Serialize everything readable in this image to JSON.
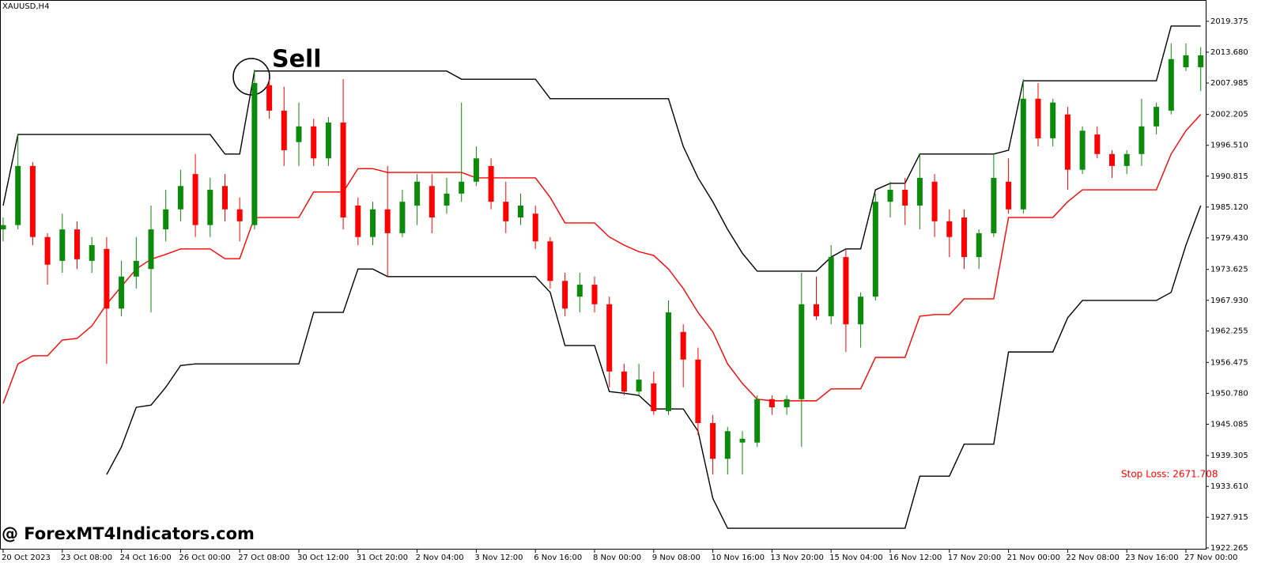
{
  "chart_data": {
    "type": "candlestick",
    "title": "XAUUSD,H4",
    "annotations": [
      "Sell",
      "Stop Loss: 2671.708",
      "@ ForexMT4Indicators.com"
    ],
    "up_color": "#0b8a0b",
    "down_color": "#ff0000",
    "categories": [
      "20 Oct 2023",
      null,
      null,
      null,
      "23 Oct 08:00",
      null,
      null,
      null,
      "24 Oct 16:00",
      null,
      null,
      null,
      "26 Oct 00:00",
      null,
      null,
      null,
      "27 Oct 08:00",
      null,
      null,
      null,
      "30 Oct 12:00",
      null,
      null,
      null,
      "31 Oct 20:00",
      null,
      null,
      null,
      "2 Nov 04:00",
      null,
      null,
      null,
      "3 Nov 12:00",
      null,
      null,
      null,
      "6 Nov 16:00",
      null,
      null,
      null,
      "8 Nov 00:00",
      null,
      null,
      null,
      "9 Nov 08:00",
      null,
      null,
      null,
      "10 Nov 16:00",
      null,
      null,
      null,
      "13 Nov 20:00",
      null,
      null,
      null,
      "15 Nov 04:00",
      null,
      null,
      null,
      "16 Nov 12:00",
      null,
      null,
      null,
      "17 Nov 20:00",
      null,
      null,
      null,
      "21 Nov 00:00",
      null,
      null,
      null,
      "22 Nov 08:00",
      null,
      null,
      null,
      "23 Nov 16:00",
      null,
      null,
      null,
      "27 Nov 00:00",
      null
    ],
    "candles": [
      [
        1981.0,
        1983.2,
        1978.8,
        1981.8
      ],
      [
        1981.8,
        1998.5,
        1981.0,
        1992.7
      ],
      [
        1992.7,
        1993.4,
        1978.1,
        1979.6
      ],
      [
        1979.6,
        1980.3,
        1970.8,
        1974.5
      ],
      [
        1975.2,
        1983.9,
        1973.0,
        1981.0
      ],
      [
        1981.0,
        1982.5,
        1973.7,
        1975.5
      ],
      [
        1975.2,
        1979.6,
        1973.0,
        1978.1
      ],
      [
        1977.4,
        1979.6,
        1956.2,
        1966.4
      ],
      [
        1966.4,
        1975.2,
        1965.0,
        1972.3
      ],
      [
        1972.3,
        1979.6,
        1970.1,
        1975.2
      ],
      [
        1973.7,
        1985.4,
        1965.7,
        1981.0
      ],
      [
        1981.0,
        1988.3,
        1978.8,
        1984.7
      ],
      [
        1984.7,
        1992.0,
        1982.5,
        1989.0
      ],
      [
        1991.2,
        1994.9,
        1979.6,
        1981.8
      ],
      [
        1981.8,
        1990.5,
        1979.6,
        1988.3
      ],
      [
        1989.0,
        1991.2,
        1982.5,
        1984.7
      ],
      [
        1984.7,
        1986.9,
        1978.8,
        1982.5
      ],
      [
        1981.8,
        2010.5,
        1981.0,
        2008.0
      ],
      [
        2007.6,
        2008.7,
        2001.4,
        2002.9
      ],
      [
        2002.9,
        2007.3,
        1992.7,
        1995.6
      ],
      [
        1997.1,
        2004.4,
        1992.7,
        2000.0
      ],
      [
        2000.0,
        2001.4,
        1992.7,
        1994.1
      ],
      [
        1994.1,
        2001.7,
        1992.7,
        2000.7
      ],
      [
        2000.7,
        2008.7,
        1981.0,
        1983.2
      ],
      [
        1985.4,
        1986.9,
        1978.1,
        1979.6
      ],
      [
        1979.6,
        1986.1,
        1978.1,
        1984.7
      ],
      [
        1984.7,
        1992.7,
        1972.3,
        1980.3
      ],
      [
        1980.3,
        1988.3,
        1979.6,
        1986.1
      ],
      [
        1985.4,
        1991.2,
        1981.8,
        1989.8
      ],
      [
        1989.0,
        1991.2,
        1980.3,
        1983.2
      ],
      [
        1985.4,
        1990.5,
        1983.9,
        1987.6
      ],
      [
        1987.6,
        2004.4,
        1986.1,
        1989.8
      ],
      [
        1989.8,
        1996.3,
        1989.0,
        1994.1
      ],
      [
        1992.7,
        1994.1,
        1984.7,
        1986.1
      ],
      [
        1986.1,
        1989.8,
        1980.3,
        1982.5
      ],
      [
        1983.2,
        1987.6,
        1981.8,
        1985.4
      ],
      [
        1983.9,
        1985.4,
        1977.4,
        1978.8
      ],
      [
        1978.8,
        1979.6,
        1970.1,
        1971.5
      ],
      [
        1971.5,
        1973.0,
        1965.0,
        1966.4
      ],
      [
        1968.6,
        1973.0,
        1965.7,
        1970.8
      ],
      [
        1970.8,
        1972.3,
        1965.7,
        1967.2
      ],
      [
        1967.2,
        1968.6,
        1951.9,
        1954.8
      ],
      [
        1954.8,
        1956.2,
        1950.4,
        1951.1
      ],
      [
        1951.1,
        1956.2,
        1950.4,
        1953.3
      ],
      [
        1952.6,
        1954.8,
        1946.8,
        1947.5
      ],
      [
        1947.5,
        1967.9,
        1946.8,
        1965.7
      ],
      [
        1962.1,
        1963.5,
        1951.9,
        1957.0
      ],
      [
        1957.0,
        1959.2,
        1943.1,
        1945.3
      ],
      [
        1945.3,
        1946.8,
        1935.8,
        1938.7
      ],
      [
        1938.7,
        1944.6,
        1935.8,
        1943.8
      ],
      [
        1941.7,
        1943.8,
        1935.8,
        1942.4
      ],
      [
        1941.7,
        1950.4,
        1940.9,
        1949.7
      ],
      [
        1949.7,
        1950.4,
        1946.8,
        1948.2
      ],
      [
        1948.2,
        1950.4,
        1946.8,
        1949.7
      ],
      [
        1949.7,
        1973.0,
        1940.9,
        1967.2
      ],
      [
        1967.2,
        1972.3,
        1964.3,
        1965.0
      ],
      [
        1965.0,
        1978.1,
        1963.5,
        1975.9
      ],
      [
        1975.9,
        1977.4,
        1958.4,
        1963.5
      ],
      [
        1963.5,
        1969.4,
        1959.2,
        1968.6
      ],
      [
        1968.6,
        1987.6,
        1967.9,
        1986.1
      ],
      [
        1986.1,
        1989.8,
        1983.2,
        1988.3
      ],
      [
        1988.3,
        1990.5,
        1981.8,
        1985.4
      ],
      [
        1985.4,
        1994.9,
        1981.0,
        1990.5
      ],
      [
        1989.8,
        1991.2,
        1979.6,
        1982.5
      ],
      [
        1982.5,
        1984.7,
        1975.9,
        1979.6
      ],
      [
        1983.2,
        1984.7,
        1973.7,
        1975.9
      ],
      [
        1975.9,
        1981.0,
        1973.7,
        1980.3
      ],
      [
        1980.3,
        1994.9,
        1979.6,
        1990.5
      ],
      [
        1989.8,
        1994.1,
        1983.9,
        1984.7
      ],
      [
        1984.7,
        2008.7,
        1983.9,
        2005.1
      ],
      [
        2005.1,
        2008.0,
        1996.3,
        1997.8
      ],
      [
        1997.8,
        2005.1,
        1996.3,
        2004.4
      ],
      [
        2002.2,
        2003.6,
        1988.3,
        1992.0
      ],
      [
        1992.0,
        2000.0,
        1991.2,
        1999.2
      ],
      [
        1998.5,
        2000.0,
        1994.1,
        1994.9
      ],
      [
        1994.9,
        1995.6,
        1990.5,
        1992.7
      ],
      [
        1992.7,
        1995.6,
        1991.2,
        1994.9
      ],
      [
        1994.9,
        2005.1,
        1992.7,
        2000.0
      ],
      [
        2000.0,
        2004.4,
        1998.5,
        2003.6
      ],
      [
        2002.9,
        2015.3,
        2002.2,
        2012.4
      ],
      [
        2010.9,
        2015.3,
        2010.2,
        2013.1
      ],
      [
        2010.9,
        2014.6,
        2006.5,
        2013.1
      ]
    ],
    "lines": [
      {
        "color": "#000000",
        "values": [
          1985.4,
          1998.5,
          1998.5,
          1998.5,
          1998.5,
          1998.5,
          1998.5,
          1998.5,
          1998.5,
          1998.5,
          1998.5,
          1998.5,
          1998.5,
          1998.5,
          1998.5,
          1994.9,
          1994.9,
          2010.2,
          2010.2,
          2010.2,
          2010.2,
          2010.2,
          2010.2,
          2010.2,
          2010.2,
          2010.2,
          2010.2,
          2010.2,
          2010.2,
          2010.2,
          2010.2,
          2008.7,
          2008.7,
          2008.7,
          2008.7,
          2008.7,
          2008.7,
          2005.1,
          2005.1,
          2005.1,
          2005.1,
          2005.1,
          2005.1,
          2005.1,
          2005.1,
          2005.1,
          1996.3,
          1990.5,
          1986.1,
          1981.0,
          1976.6,
          1973.3,
          1973.3,
          1973.3,
          1973.3,
          1973.3,
          1975.9,
          1977.4,
          1977.4,
          1988.3,
          1989.5,
          1989.5,
          1994.9,
          1994.9,
          1994.9,
          1994.9,
          1994.9,
          1994.9,
          1995.6,
          2008.4,
          2008.4,
          2008.4,
          2008.4,
          2008.4,
          2008.4,
          2008.4,
          2008.4,
          2008.4,
          2008.4,
          2018.5,
          2018.5,
          2018.5
        ]
      },
      {
        "color": "#ff0000",
        "values": [
          1948.9,
          1956.2,
          1957.7,
          1957.7,
          1960.6,
          1960.9,
          1963.2,
          1967.2,
          1970.5,
          1973.7,
          1975.5,
          1976.4,
          1977.4,
          1977.4,
          1977.4,
          1975.6,
          1975.6,
          1983.2,
          1983.2,
          1983.2,
          1983.2,
          1987.9,
          1987.9,
          1987.9,
          1992.2,
          1992.2,
          1991.5,
          1991.5,
          1991.5,
          1991.5,
          1991.5,
          1991.5,
          1990.5,
          1990.5,
          1990.5,
          1990.5,
          1990.5,
          1986.9,
          1982.2,
          1982.2,
          1982.2,
          1979.6,
          1978.1,
          1976.9,
          1976.2,
          1973.7,
          1970.1,
          1965.7,
          1962.1,
          1956.2,
          1952.6,
          1949.7,
          1949.4,
          1949.4,
          1949.4,
          1949.4,
          1951.6,
          1951.6,
          1951.6,
          1957.4,
          1957.4,
          1957.4,
          1965.0,
          1965.3,
          1965.3,
          1968.2,
          1968.2,
          1968.2,
          1983.2,
          1983.2,
          1983.2,
          1983.2,
          1986.1,
          1988.3,
          1988.3,
          1988.3,
          1988.3,
          1988.3,
          1988.3,
          1994.9,
          1999.2,
          2002.2
        ]
      },
      {
        "color": "#000000",
        "values": [
          null,
          null,
          null,
          null,
          null,
          null,
          null,
          1935.8,
          1940.9,
          1948.2,
          1948.6,
          1951.9,
          1955.9,
          1956.2,
          1956.2,
          1956.2,
          1956.2,
          1956.2,
          1956.2,
          1956.2,
          1956.2,
          1965.7,
          1965.7,
          1965.7,
          1973.7,
          1973.7,
          1972.3,
          1972.3,
          1972.3,
          1972.3,
          1972.3,
          1972.3,
          1972.3,
          1972.3,
          1972.3,
          1972.3,
          1972.3,
          1969.4,
          1959.6,
          1959.6,
          1959.6,
          1951.1,
          1950.8,
          1950.4,
          1947.9,
          1947.9,
          1947.9,
          1943.8,
          1931.4,
          1925.9,
          1925.9,
          1925.9,
          1925.9,
          1925.9,
          1925.9,
          1925.9,
          1925.9,
          1925.9,
          1925.9,
          1925.9,
          1925.9,
          1925.9,
          1935.5,
          1935.5,
          1935.5,
          1941.4,
          1941.4,
          1941.4,
          1958.4,
          1958.4,
          1958.4,
          1958.4,
          1964.7,
          1967.9,
          1967.9,
          1967.9,
          1967.9,
          1967.9,
          1967.9,
          1969.4,
          1978.1,
          1985.4
        ]
      }
    ],
    "ylim": [
      1921.97,
      2023.3
    ],
    "yticks": [
      2019.375,
      {
        "value": 2013.68,
        "label": "2013.680"
      },
      2007.985,
      2002.205,
      {
        "value": 1996.51,
        "label": "1996.510"
      },
      1990.815,
      {
        "value": 1985.12,
        "label": "1985.120"
      },
      {
        "value": 1979.43,
        "label": "1979.430"
      },
      1973.625,
      {
        "value": 1967.93,
        "label": "1967.930"
      },
      1962.255,
      1956.475,
      {
        "value": 1950.78,
        "label": "1950.780"
      },
      1945.085,
      1939.305,
      {
        "value": 1933.61,
        "label": "1933.610"
      },
      1927.915,
      1922.265
    ]
  }
}
